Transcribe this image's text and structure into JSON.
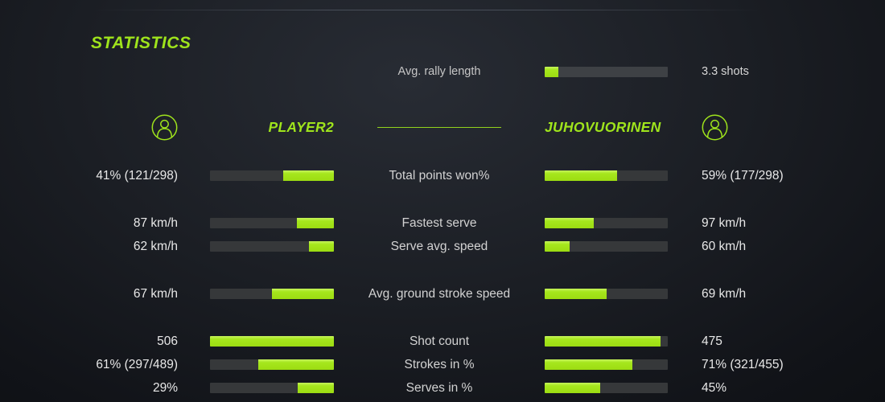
{
  "colors": {
    "accent": "#9fe41c",
    "bar_track": "#36383a",
    "background_center": "#282c34",
    "background_edge": "#0a0c0e",
    "value_text": "#e8e8e8",
    "label_text": "#d2d2d2"
  },
  "header": {
    "title": "STATISTICS"
  },
  "rally": {
    "label": "Avg. rally length",
    "value": "3.3 shots",
    "fill_pct": 11
  },
  "players": {
    "left": "PLAYER2",
    "right": "JUHOVUORINEN",
    "left_icon": "person-circle-icon",
    "right_icon": "person-circle-icon"
  },
  "rows": [
    {
      "label": "Total points won%",
      "left_value": "41% (121/298)",
      "right_value": "59% (177/298)",
      "left_pct": 41,
      "right_pct": 59,
      "group_start": false
    },
    {
      "label": "Fastest serve",
      "left_value": "87 km/h",
      "right_value": "97 km/h",
      "left_pct": 30,
      "right_pct": 40,
      "group_start": true
    },
    {
      "label": "Serve avg. speed",
      "left_value": "62 km/h",
      "right_value": "60 km/h",
      "left_pct": 20,
      "right_pct": 20,
      "group_start": false
    },
    {
      "label": "Avg. ground stroke speed",
      "left_value": "67 km/h",
      "right_value": "69 km/h",
      "left_pct": 50,
      "right_pct": 50,
      "group_start": true
    },
    {
      "label": "Shot count",
      "left_value": "506",
      "right_value": "475",
      "left_pct": 100,
      "right_pct": 94,
      "group_start": true
    },
    {
      "label": "Strokes in %",
      "left_value": "61% (297/489)",
      "right_value": "71% (321/455)",
      "left_pct": 61,
      "right_pct": 71,
      "group_start": false
    },
    {
      "label": "Serves in %",
      "left_value": "29%",
      "right_value": "45%",
      "left_pct": 29,
      "right_pct": 45,
      "group_start": false
    }
  ]
}
